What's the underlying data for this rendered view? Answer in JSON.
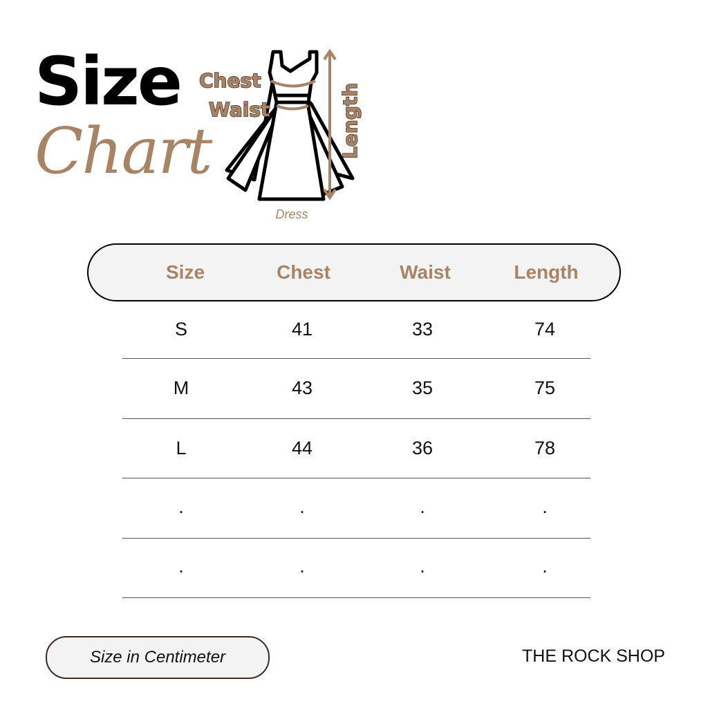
{
  "title": {
    "line1": "Size",
    "line2": "Chart"
  },
  "diagram": {
    "labels": {
      "chest": "Chest",
      "waist": "Waist",
      "length": "Length"
    },
    "caption": "Dress",
    "accent_color": "#a88466",
    "outline_color": "#4a2c1c"
  },
  "table": {
    "headers": [
      "Size",
      "Chest",
      "Waist",
      "Length"
    ],
    "rows": [
      [
        "S",
        "41",
        "33",
        "74"
      ],
      [
        "M",
        "43",
        "35",
        "75"
      ],
      [
        "L",
        "44",
        "36",
        "78"
      ],
      [
        ".",
        ".",
        ".",
        "."
      ],
      [
        ".",
        ".",
        ".",
        "."
      ]
    ]
  },
  "footer": {
    "unit_note": "Size in Centimeter",
    "brand": "THE ROCK SHOP"
  }
}
